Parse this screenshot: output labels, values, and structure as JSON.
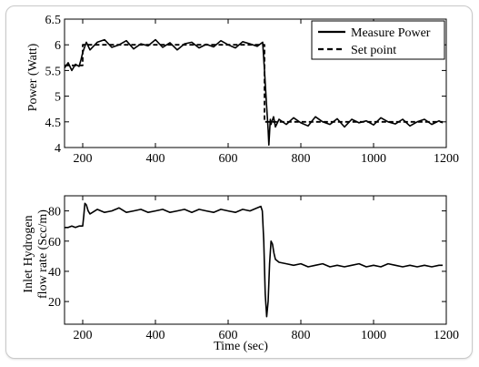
{
  "chart_data": [
    {
      "type": "line",
      "title": "",
      "xlabel": "",
      "ylabel": "Power (Watt)",
      "xlim": [
        150,
        1200
      ],
      "ylim": [
        4,
        6.5
      ],
      "xticks": [
        "200",
        "400",
        "600",
        "800",
        "1000",
        "1200"
      ],
      "yticks": [
        "4",
        "4.5",
        "5",
        "5.5",
        "6",
        "6.5"
      ],
      "legend_position": "top-right",
      "series": [
        {
          "name": "Measure Power",
          "style": "solid",
          "x": [
            150,
            160,
            170,
            180,
            190,
            195,
            200,
            205,
            210,
            220,
            240,
            260,
            280,
            300,
            320,
            340,
            360,
            380,
            400,
            420,
            440,
            460,
            480,
            500,
            520,
            540,
            560,
            580,
            600,
            620,
            640,
            660,
            680,
            695,
            700,
            705,
            710,
            712,
            714,
            716,
            718,
            720,
            725,
            730,
            740,
            760,
            780,
            800,
            820,
            840,
            860,
            880,
            900,
            920,
            940,
            960,
            980,
            1000,
            1020,
            1040,
            1060,
            1080,
            1100,
            1120,
            1140,
            1160,
            1180,
            1190
          ],
          "y": [
            5.55,
            5.65,
            5.5,
            5.62,
            5.58,
            5.7,
            5.85,
            5.95,
            6.05,
            5.9,
            6.05,
            6.1,
            5.95,
            6.0,
            6.08,
            5.92,
            6.02,
            5.98,
            6.1,
            5.95,
            6.04,
            5.9,
            6.02,
            6.05,
            5.94,
            6.01,
            5.96,
            6.08,
            6.0,
            5.94,
            6.06,
            6.02,
            5.97,
            6.05,
            5.5,
            4.9,
            4.35,
            4.05,
            4.3,
            4.55,
            4.45,
            4.5,
            4.6,
            4.4,
            4.55,
            4.45,
            4.58,
            4.48,
            4.42,
            4.6,
            4.5,
            4.45,
            4.56,
            4.4,
            4.55,
            4.48,
            4.52,
            4.44,
            4.58,
            4.5,
            4.46,
            4.55,
            4.42,
            4.5,
            4.55,
            4.45,
            4.52,
            4.48
          ]
        },
        {
          "name": "Set point",
          "style": "dashed",
          "x": [
            150,
            200,
            200,
            700,
            700,
            710,
            1190
          ],
          "y": [
            5.6,
            5.6,
            6.0,
            6.0,
            4.5,
            4.5,
            4.5
          ]
        }
      ]
    },
    {
      "type": "line",
      "title": "",
      "xlabel": "Time (sec)",
      "ylabel": "Inlet Hydrogen flow rate (Scc/m)",
      "xlim": [
        150,
        1200
      ],
      "ylim": [
        5,
        90
      ],
      "xticks": [
        "200",
        "400",
        "600",
        "800",
        "1000",
        "1200"
      ],
      "yticks": [
        "20",
        "40",
        "60",
        "80"
      ],
      "series": [
        {
          "style": "solid",
          "x": [
            150,
            160,
            170,
            180,
            190,
            200,
            203,
            206,
            210,
            215,
            220,
            240,
            260,
            280,
            300,
            320,
            340,
            360,
            380,
            400,
            420,
            440,
            460,
            480,
            500,
            520,
            540,
            560,
            580,
            600,
            620,
            640,
            660,
            680,
            690,
            694,
            698,
            702,
            706,
            710,
            714,
            718,
            722,
            726,
            730,
            740,
            760,
            780,
            800,
            820,
            840,
            860,
            880,
            900,
            920,
            940,
            960,
            980,
            1000,
            1020,
            1040,
            1060,
            1080,
            1100,
            1120,
            1140,
            1160,
            1180,
            1190
          ],
          "y": [
            69,
            69,
            70,
            69,
            70,
            70,
            77,
            85,
            84,
            80,
            78,
            81,
            79,
            80,
            82,
            79,
            80,
            81,
            79,
            80,
            81,
            79,
            80,
            81,
            79,
            81,
            80,
            79,
            81,
            80,
            79,
            81,
            80,
            82,
            83,
            80,
            60,
            25,
            10,
            20,
            45,
            60,
            58,
            52,
            48,
            46,
            45,
            44,
            45,
            43,
            44,
            45,
            43,
            44,
            43,
            44,
            45,
            43,
            44,
            43,
            45,
            44,
            43,
            44,
            43,
            44,
            43,
            44,
            44
          ]
        }
      ]
    }
  ]
}
